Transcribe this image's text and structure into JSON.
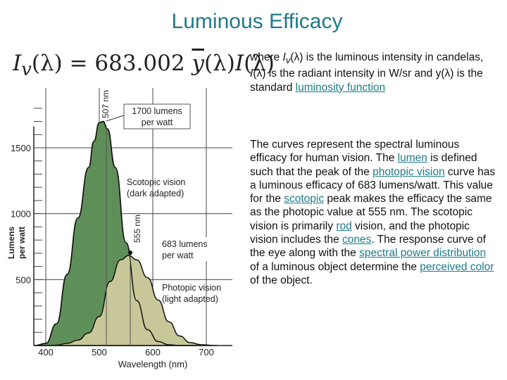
{
  "title": "Luminous Efficacy",
  "formula": {
    "lhs": "I",
    "lhs_sub": "v",
    "arg": "(λ)",
    "equals": "=",
    "constant": "683.002",
    "ybar": "y",
    "rhs_arg": "(λ)",
    "rhs_I": "I",
    "rhs_arg2": "(λ)"
  },
  "paragraph1": {
    "t1": "where ",
    "t2": "I",
    "t3": "v",
    "t4": "(λ) is the luminous intensity in candelas, ",
    "t5": "I",
    "t6": "(λ) is the radiant intensity in W/sr and y(λ) is the standard ",
    "link1": "luminosity function"
  },
  "paragraph2": {
    "t1": "The curves represent the spectral luminous efficacy for human vision. The ",
    "link_lumen": "lumen",
    "t2": " is defined such that the peak of the ",
    "link_photopic": "photopic vision",
    "t3": " curve has a luminous efficacy of 683 lumens/watt. This value for the ",
    "link_scotopic": "scotopic",
    "t4": " peak makes the efficacy the same as the photopic value at 555 nm. The scotopic vision is primarily ",
    "link_rod": "rod",
    "t5": " vision, and the photopic vision includes the ",
    "link_cones": "cones",
    "t6": ". The response curve of the eye along with the ",
    "link_spd": "spectral power distribution",
    "t7": " of a luminous object determine the ",
    "link_color": "perceived color",
    "t8": " of the object."
  },
  "chart_data": {
    "type": "area",
    "xlabel": "Wavelength (nm)",
    "ylabel_line1": "Lumens",
    "ylabel_line2": "per watt",
    "xlim": [
      380,
      720
    ],
    "ylim": [
      0,
      1800
    ],
    "xticks": [
      400,
      500,
      600,
      700
    ],
    "xtick_labels": [
      "400",
      "500",
      "600",
      "700"
    ],
    "yticks": [
      500,
      1000,
      1500
    ],
    "ytick_labels": [
      "500",
      "1000",
      "1500"
    ],
    "grid": true,
    "annotations": {
      "nm507": "507 nm",
      "nm555": "555 nm",
      "peak1700_l1": "1700 lumens",
      "peak1700_l2": "per watt",
      "scot_l1": "Scotopic vision",
      "scot_l2": "(dark adapted)",
      "peak683_l1": "683 lumens",
      "peak683_l2": "per watt",
      "phot_l1": "Photopic vision",
      "phot_l2": "(light adapted)"
    },
    "series": [
      {
        "color": "#5f8f58",
        "x": [
          380,
          400,
          420,
          440,
          460,
          480,
          490,
          500,
          507,
          515,
          530,
          550,
          570,
          590,
          610,
          630,
          650,
          680
        ],
        "values": [
          1,
          16,
          165,
          540,
          967,
          1350,
          1550,
          1690,
          1700,
          1645,
          1350,
          780,
          340,
          120,
          30,
          6,
          1,
          0
        ]
      },
      {
        "color": "#c8c79a",
        "x": [
          380,
          400,
          420,
          440,
          460,
          480,
          500,
          520,
          540,
          555,
          570,
          590,
          610,
          630,
          650,
          670,
          690,
          720
        ],
        "values": [
          0,
          0,
          3,
          16,
          41,
          95,
          220,
          485,
          650,
          683,
          650,
          515,
          345,
          180,
          73,
          22,
          6,
          0
        ]
      }
    ]
  },
  "colors": {
    "title": "#1f7a8a",
    "link": "#1f7a8a",
    "scotopic_fill": "#5f8f58",
    "photopic_fill": "#c8c79a"
  }
}
